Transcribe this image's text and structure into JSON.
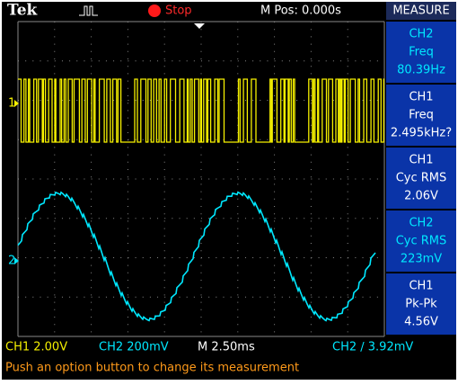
{
  "top_bar": {
    "brand": "Tek",
    "status": "Stop",
    "position": "M Pos: 0.000s"
  },
  "channel_markers": [
    "1",
    "2"
  ],
  "menu": {
    "title": "MEASURE",
    "items": [
      {
        "source": "CH2",
        "type": "Freq",
        "value": "80.39Hz"
      },
      {
        "source": "CH1",
        "type": "Freq",
        "value": "2.495kHz?"
      },
      {
        "source": "CH1",
        "type": "Cyc RMS",
        "value": "2.06V"
      },
      {
        "source": "CH2",
        "type": "Cyc RMS",
        "value": "223mV"
      },
      {
        "source": "CH1",
        "type": "Pk-Pk",
        "value": "4.56V"
      }
    ]
  },
  "status_bar": {
    "ch1": "CH1  2.00V",
    "ch2": "CH2  200mV",
    "timebase": "M 2.50ms",
    "trigger": "CH2 ∕ 3.92mV"
  },
  "message": "Push an option button to change its measurement"
}
